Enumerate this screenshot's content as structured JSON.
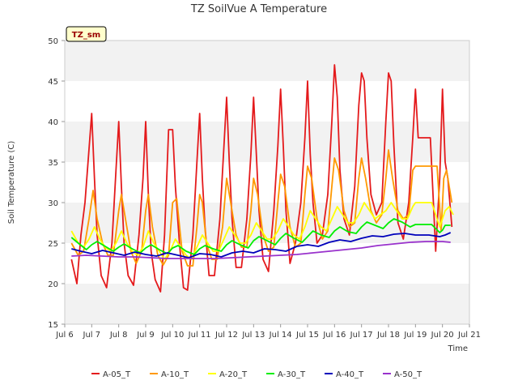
{
  "chart_data": {
    "type": "line",
    "title": "TZ SoilVue A Temperature",
    "xlabel": "Time",
    "ylabel": "Soil Temperature (C)",
    "badge": "TZ_sm",
    "ylim": [
      15,
      50
    ],
    "xlim": [
      6,
      21
    ],
    "y_ticks": [
      15,
      20,
      25,
      30,
      35,
      40,
      45,
      50
    ],
    "x_ticks": [
      {
        "value": 6,
        "label": "Jul 6"
      },
      {
        "value": 7,
        "label": "Jul 7"
      },
      {
        "value": 8,
        "label": "Jul 8"
      },
      {
        "value": 9,
        "label": "Jul 9"
      },
      {
        "value": 10,
        "label": "Jul 10"
      },
      {
        "value": 11,
        "label": "Jul 11"
      },
      {
        "value": 12,
        "label": "Jul 12"
      },
      {
        "value": 13,
        "label": "Jul 13"
      },
      {
        "value": 14,
        "label": "Jul 14"
      },
      {
        "value": 15,
        "label": "Jul 15"
      },
      {
        "value": 16,
        "label": "Jul 16"
      },
      {
        "value": 17,
        "label": "Jul 17"
      },
      {
        "value": 18,
        "label": "Jul 18"
      },
      {
        "value": 19,
        "label": "Jul 19"
      },
      {
        "value": 20,
        "label": "Jul 20"
      },
      {
        "value": 21,
        "label": "Jul 21"
      }
    ],
    "grid": "horizontal bands",
    "legend_position": "bottom",
    "colors": {
      "A-05_T": "#e41a1c",
      "A-10_T": "#ff9900",
      "A-20_T": "#ffff00",
      "A-30_T": "#00ee00",
      "A-40_T": "#0000bb",
      "A-50_T": "#9932cc"
    },
    "series": [
      {
        "name": "A-05_T",
        "x": [
          6.25,
          6.45,
          6.6,
          6.75,
          7.0,
          7.1,
          7.2,
          7.35,
          7.55,
          7.75,
          7.9,
          8.0,
          8.1,
          8.2,
          8.35,
          8.55,
          8.75,
          8.9,
          9.0,
          9.1,
          9.2,
          9.35,
          9.55,
          9.7,
          9.85,
          10.0,
          10.1,
          10.25,
          10.4,
          10.55,
          10.75,
          10.9,
          11.0,
          11.1,
          11.2,
          11.35,
          11.55,
          11.75,
          11.9,
          12.0,
          12.1,
          12.2,
          12.35,
          12.55,
          12.75,
          12.9,
          13.0,
          13.1,
          13.2,
          13.35,
          13.55,
          13.75,
          13.9,
          14.0,
          14.1,
          14.2,
          14.35,
          14.55,
          14.75,
          14.9,
          15.0,
          15.1,
          15.2,
          15.35,
          15.55,
          15.75,
          15.9,
          16.0,
          16.1,
          16.2,
          16.35,
          16.55,
          16.75,
          16.9,
          17.0,
          17.1,
          17.2,
          17.35,
          17.55,
          17.75,
          17.9,
          18.0,
          18.1,
          18.2,
          18.35,
          18.55,
          18.75,
          18.9,
          19.0,
          19.1,
          19.2,
          19.35,
          19.55,
          19.75,
          19.9,
          20.0,
          20.1,
          20.2,
          20.35
        ],
        "y": [
          23,
          20,
          26,
          30,
          41,
          33,
          26,
          21,
          19.5,
          25,
          34,
          40,
          32,
          25,
          21,
          19.8,
          26,
          33,
          40,
          31,
          24,
          20.5,
          19,
          26,
          39,
          39,
          32,
          25,
          19.5,
          19.2,
          26,
          35,
          41,
          33,
          27,
          21,
          21,
          28,
          37,
          43,
          35,
          28,
          22,
          22,
          28,
          36,
          43,
          36,
          29,
          23,
          21.5,
          29,
          37,
          44,
          37,
          29,
          22.5,
          25,
          30,
          38,
          45,
          36,
          30,
          25,
          26,
          31,
          40,
          47,
          43,
          34,
          28,
          26,
          32,
          42,
          46,
          45,
          38,
          31,
          28.5,
          30,
          40,
          46,
          45,
          37,
          27.5,
          25.5,
          30,
          38,
          44,
          38,
          38,
          38,
          38,
          24,
          33,
          44,
          35,
          33,
          27
        ]
      },
      {
        "name": "A-10_T",
        "x": [
          6.25,
          6.5,
          6.7,
          6.9,
          7.05,
          7.2,
          7.4,
          7.6,
          7.8,
          8.0,
          8.1,
          8.25,
          8.45,
          8.65,
          8.85,
          9.0,
          9.1,
          9.25,
          9.45,
          9.65,
          9.85,
          10.0,
          10.15,
          10.35,
          10.55,
          10.75,
          10.9,
          11.0,
          11.1,
          11.25,
          11.45,
          11.65,
          11.85,
          12.0,
          12.15,
          12.35,
          12.55,
          12.75,
          12.9,
          13.0,
          13.15,
          13.35,
          13.55,
          13.75,
          13.9,
          14.0,
          14.15,
          14.35,
          14.55,
          14.75,
          14.9,
          15.0,
          15.15,
          15.35,
          15.55,
          15.75,
          15.9,
          16.0,
          16.15,
          16.35,
          16.55,
          16.75,
          16.9,
          17.0,
          17.15,
          17.35,
          17.55,
          17.75,
          17.9,
          18.0,
          18.15,
          18.35,
          18.55,
          18.75,
          18.9,
          19.0,
          19.2,
          19.5,
          19.8,
          19.95,
          20.05,
          20.15,
          20.35
        ],
        "y": [
          25,
          23.5,
          24,
          28,
          31.5,
          28,
          25,
          23.5,
          23.5,
          29,
          31,
          28,
          24,
          22.5,
          24,
          29,
          31,
          27,
          23.5,
          22.3,
          23.5,
          30,
          30.5,
          24,
          22.2,
          22.2,
          27,
          31,
          30,
          25,
          23,
          23,
          27,
          33,
          30,
          26,
          24.5,
          24.5,
          29,
          33,
          31,
          26,
          24,
          24.5,
          30,
          33.5,
          32,
          27,
          24.5,
          25,
          31,
          34.5,
          33,
          28,
          25.5,
          26.5,
          32,
          35.5,
          34,
          29,
          27,
          27.5,
          33,
          35.5,
          33,
          29,
          27.5,
          28.5,
          33,
          36.5,
          33,
          29,
          28,
          28.5,
          34,
          34.5,
          34.5,
          34.5,
          34.5,
          26.5,
          33,
          34,
          30
        ]
      },
      {
        "name": "A-20_T",
        "x": [
          6.25,
          6.5,
          6.7,
          6.9,
          7.1,
          7.3,
          7.5,
          7.7,
          7.9,
          8.1,
          8.3,
          8.5,
          8.7,
          8.9,
          9.1,
          9.3,
          9.5,
          9.7,
          9.9,
          10.1,
          10.3,
          10.5,
          10.7,
          10.9,
          11.1,
          11.3,
          11.5,
          11.7,
          11.9,
          12.1,
          12.3,
          12.5,
          12.7,
          12.9,
          13.1,
          13.3,
          13.5,
          13.7,
          13.9,
          14.1,
          14.3,
          14.5,
          14.7,
          14.9,
          15.1,
          15.3,
          15.5,
          15.7,
          15.9,
          16.1,
          16.3,
          16.5,
          16.7,
          16.9,
          17.1,
          17.3,
          17.5,
          17.7,
          17.9,
          18.1,
          18.3,
          18.5,
          18.7,
          18.9,
          19.0,
          19.3,
          19.6,
          19.9,
          20.0,
          20.1,
          20.25,
          20.4
        ],
        "y": [
          26.5,
          25,
          24.5,
          25.5,
          27,
          25.5,
          24.5,
          24,
          25,
          26.5,
          25,
          24,
          23.5,
          24.5,
          26.5,
          25,
          24,
          23,
          24,
          25.5,
          24.5,
          23.5,
          23,
          24.5,
          26,
          25,
          24,
          24,
          25.5,
          27,
          26,
          25,
          25,
          26,
          27.5,
          26.5,
          25.5,
          25.5,
          26.5,
          28,
          27,
          26,
          25.5,
          27,
          29,
          28,
          27,
          26.5,
          28,
          29.5,
          28.5,
          27.5,
          27.5,
          28.5,
          30,
          29,
          28,
          28.5,
          29,
          30,
          29,
          28,
          28,
          29.5,
          30,
          30,
          30,
          27,
          28,
          29,
          29.5,
          28.5
        ]
      },
      {
        "name": "A-30_T",
        "x": [
          6.25,
          6.5,
          6.8,
          7.0,
          7.2,
          7.5,
          7.8,
          8.0,
          8.2,
          8.5,
          8.8,
          9.0,
          9.2,
          9.5,
          9.8,
          10.0,
          10.2,
          10.5,
          10.8,
          11.0,
          11.2,
          11.5,
          11.8,
          12.0,
          12.2,
          12.5,
          12.8,
          13.0,
          13.2,
          13.5,
          13.8,
          14.0,
          14.2,
          14.5,
          14.8,
          15.0,
          15.2,
          15.5,
          15.8,
          16.0,
          16.2,
          16.5,
          16.8,
          17.0,
          17.2,
          17.5,
          17.8,
          18.0,
          18.2,
          18.5,
          18.8,
          19.0,
          19.3,
          19.6,
          19.9,
          20.0,
          20.1,
          20.3
        ],
        "y": [
          25.7,
          25,
          24.2,
          24.8,
          25.2,
          24.6,
          24,
          24.5,
          24.9,
          24.3,
          23.8,
          24.4,
          24.8,
          24.2,
          23.7,
          24.4,
          24.7,
          24,
          23.6,
          24.3,
          24.7,
          24.3,
          24,
          24.8,
          25.3,
          24.8,
          24.4,
          25.3,
          25.8,
          25.3,
          24.8,
          25.6,
          26.2,
          25.6,
          25.1,
          25.8,
          26.5,
          26,
          25.7,
          26.5,
          27,
          26.4,
          26.2,
          27,
          27.6,
          27.2,
          26.8,
          27.5,
          28,
          27.6,
          27,
          27.3,
          27.3,
          27.3,
          26.3,
          26.6,
          27.2,
          27.2
        ]
      },
      {
        "name": "A-40_T",
        "x": [
          6.25,
          6.6,
          7.0,
          7.4,
          7.8,
          8.2,
          8.6,
          9.0,
          9.4,
          9.8,
          10.2,
          10.6,
          11.0,
          11.4,
          11.8,
          12.2,
          12.6,
          13.0,
          13.4,
          13.8,
          14.2,
          14.6,
          15.0,
          15.4,
          15.8,
          16.2,
          16.6,
          17.0,
          17.4,
          17.8,
          18.2,
          18.6,
          19.0,
          19.5,
          19.9,
          20.1,
          20.3
        ],
        "y": [
          24.3,
          24.0,
          23.7,
          24.1,
          23.8,
          23.5,
          23.9,
          23.6,
          23.4,
          23.8,
          23.5,
          23.2,
          23.7,
          23.6,
          23.3,
          23.8,
          24.0,
          23.8,
          24.3,
          24.2,
          24.0,
          24.6,
          24.8,
          24.6,
          25.1,
          25.4,
          25.2,
          25.6,
          25.9,
          25.8,
          26.1,
          26.2,
          26.0,
          26.0,
          25.8,
          26.0,
          26.3
        ]
      },
      {
        "name": "A-50_T",
        "x": [
          6.25,
          6.8,
          7.4,
          8.0,
          8.6,
          9.2,
          9.8,
          10.4,
          11.0,
          11.6,
          12.2,
          12.8,
          13.4,
          14.0,
          14.6,
          15.2,
          15.8,
          16.4,
          17.0,
          17.6,
          18.2,
          18.8,
          19.4,
          20.0,
          20.3
        ],
        "y": [
          23.4,
          23.5,
          23.4,
          23.3,
          23.3,
          23.2,
          23.1,
          23.1,
          23.1,
          23.1,
          23.2,
          23.3,
          23.4,
          23.5,
          23.6,
          23.8,
          24.0,
          24.2,
          24.4,
          24.7,
          24.9,
          25.1,
          25.2,
          25.2,
          25.1
        ]
      }
    ]
  }
}
